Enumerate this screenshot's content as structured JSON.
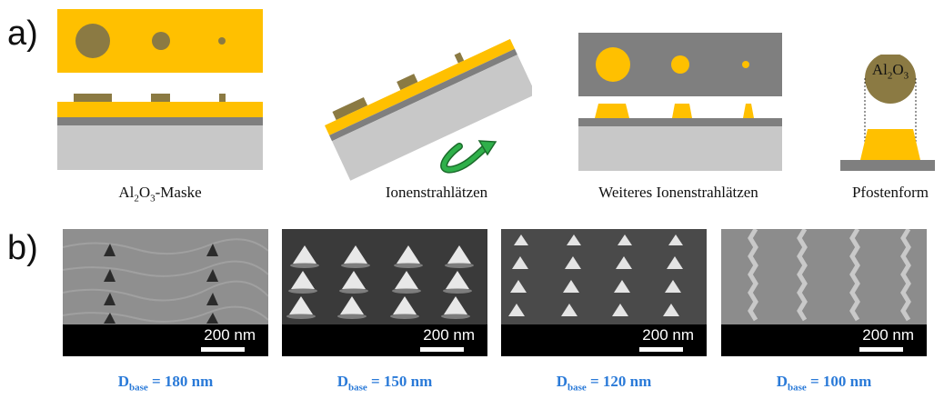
{
  "panel_a": {
    "label": "a)",
    "captions": {
      "step1_base": "Al",
      "step1_sub2": "2",
      "step1_mid": "O",
      "step1_sub3": "3",
      "step1_suffix": "-Maske",
      "step2": "Ionenstrahlätzen",
      "step3": "Weiteres Ionenstrahlätzen",
      "step4": "Pfostenform"
    },
    "inset_label": {
      "base": "Al",
      "sub2": "2",
      "mid": "O",
      "sub3": "3"
    },
    "colors": {
      "gold": "#ffc000",
      "mask": "#8b7a43",
      "substrate": "#c8c8c8",
      "dark_layer": "#7f7f7f",
      "arrow": "#1f9a3a"
    }
  },
  "panel_b": {
    "label": "b)",
    "images": [
      {
        "scale": "200 nm",
        "d_main": "D",
        "d_sub": "base",
        "d_value": " = 180 nm"
      },
      {
        "scale": "200 nm",
        "d_main": "D",
        "d_sub": "base",
        "d_value": " = 150 nm"
      },
      {
        "scale": "200 nm",
        "d_main": "D",
        "d_sub": "base",
        "d_value": " = 120 nm"
      },
      {
        "scale": "200 nm",
        "d_main": "D",
        "d_sub": "base",
        "d_value": " = 100 nm"
      }
    ],
    "label_color": "#2a7ad8"
  }
}
